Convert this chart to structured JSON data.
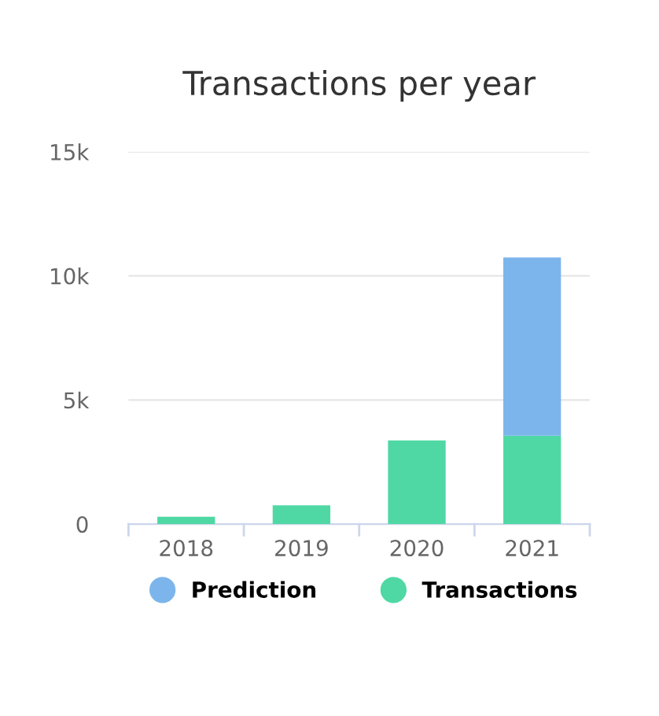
{
  "chart_data": {
    "type": "bar",
    "title": "Transactions per year",
    "categories": [
      "2018",
      "2019",
      "2020",
      "2021"
    ],
    "stacked": true,
    "series": [
      {
        "name": "Transactions",
        "color": "#4fd8a4",
        "values": [
          300,
          760,
          3370,
          3560
        ]
      },
      {
        "name": "Prediction",
        "color": "#7cb5ec",
        "values": [
          null,
          null,
          null,
          7180
        ]
      }
    ],
    "ylim": [
      0,
      15000
    ],
    "yticks": [
      0,
      {
        "value": 5000,
        "label": "5k"
      },
      {
        "value": 10000,
        "label": "10k"
      },
      {
        "value": 15000,
        "label": "15k"
      }
    ],
    "grid": "y",
    "legend": "bottom"
  }
}
